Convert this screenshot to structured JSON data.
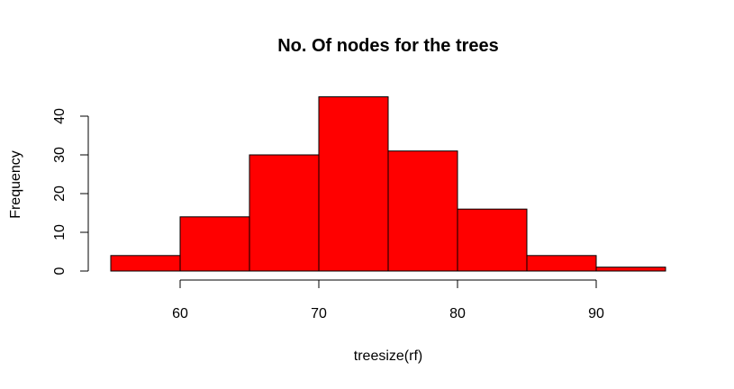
{
  "chart_data": {
    "type": "bar",
    "title": "No. Of nodes for the trees",
    "xlabel": "treesize(rf)",
    "ylabel": "Frequency",
    "bins": [
      {
        "start": 55,
        "end": 60,
        "count": 4
      },
      {
        "start": 60,
        "end": 65,
        "count": 14
      },
      {
        "start": 65,
        "end": 70,
        "count": 30
      },
      {
        "start": 70,
        "end": 75,
        "count": 45
      },
      {
        "start": 75,
        "end": 80,
        "count": 31
      },
      {
        "start": 80,
        "end": 85,
        "count": 16
      },
      {
        "start": 85,
        "end": 90,
        "count": 4
      },
      {
        "start": 90,
        "end": 95,
        "count": 1
      }
    ],
    "x_ticks": [
      60,
      70,
      80,
      90
    ],
    "y_ticks": [
      0,
      10,
      20,
      30,
      40
    ],
    "xlim": [
      55,
      95
    ],
    "ylim": [
      0,
      45
    ],
    "bar_color": "#ff0000",
    "grid": false
  }
}
